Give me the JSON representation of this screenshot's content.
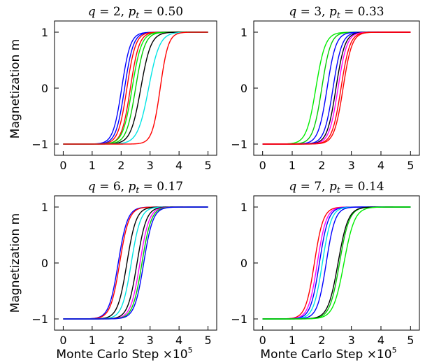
{
  "figure": {
    "ylabel": "Magnetization m",
    "xlabel": "Monte Carlo Step ×10",
    "xlabel_exponent": "5"
  },
  "chart_data": [
    {
      "type": "line",
      "title": "q = 2, p_t = 0.50",
      "title_parts": {
        "q": "2",
        "p": "0.50"
      },
      "xlim": [
        -0.3,
        5.3
      ],
      "ylim": [
        -1.2,
        1.2
      ],
      "xticks": [
        "0",
        "1",
        "2",
        "3",
        "4",
        "5"
      ],
      "yticks": [
        "-1",
        "0",
        "1"
      ],
      "grid": false,
      "series": [
        {
          "color": "#0000ff",
          "x0": 2.02,
          "width": 0.3
        },
        {
          "color": "#0000ff",
          "x0": 2.12,
          "width": 0.3
        },
        {
          "color": "#ff0000",
          "x0": 2.2,
          "width": 0.3
        },
        {
          "color": "#ff0000",
          "x0": 2.32,
          "width": 0.3
        },
        {
          "color": "#00ee00",
          "x0": 2.38,
          "width": 0.32
        },
        {
          "color": "#00cc00",
          "x0": 2.5,
          "width": 0.32
        },
        {
          "color": "#000000",
          "x0": 2.68,
          "width": 0.35
        },
        {
          "color": "#00e5e5",
          "x0": 2.95,
          "width": 0.38
        },
        {
          "color": "#ff0000",
          "x0": 3.35,
          "width": 0.28
        }
      ]
    },
    {
      "type": "line",
      "title": "q = 3, p_t = 0.33",
      "title_parts": {
        "q": "3",
        "p": "0.33"
      },
      "xlim": [
        -0.3,
        5.3
      ],
      "ylim": [
        -1.2,
        1.2
      ],
      "xticks": [
        "0",
        "1",
        "2",
        "3",
        "4",
        "5"
      ],
      "yticks": [
        "-1",
        "0",
        "1"
      ],
      "grid": false,
      "series": [
        {
          "color": "#00ee00",
          "x0": 1.8,
          "width": 0.32
        },
        {
          "color": "#00cc00",
          "x0": 2.0,
          "width": 0.3
        },
        {
          "color": "#0000ff",
          "x0": 2.18,
          "width": 0.3
        },
        {
          "color": "#0000ff",
          "x0": 2.38,
          "width": 0.3
        },
        {
          "color": "#000000",
          "x0": 2.48,
          "width": 0.3
        },
        {
          "color": "#ff00ff",
          "x0": 2.55,
          "width": 0.3
        },
        {
          "color": "#ff0000",
          "x0": 2.65,
          "width": 0.3
        },
        {
          "color": "#ff0000",
          "x0": 2.72,
          "width": 0.3
        }
      ]
    },
    {
      "type": "line",
      "title": "q = 6, p_t = 0.17",
      "title_parts": {
        "q": "6",
        "p": "0.17"
      },
      "xlim": [
        -0.3,
        5.3
      ],
      "ylim": [
        -1.2,
        1.2
      ],
      "xticks": [
        "0",
        "1",
        "2",
        "3",
        "4",
        "5"
      ],
      "yticks": [
        "-1",
        "0",
        "1"
      ],
      "grid": false,
      "series": [
        {
          "color": "#0000ff",
          "x0": 1.9,
          "width": 0.32
        },
        {
          "color": "#ff0000",
          "x0": 1.95,
          "width": 0.32
        },
        {
          "color": "#000000",
          "x0": 2.2,
          "width": 0.32
        },
        {
          "color": "#00e5e5",
          "x0": 2.35,
          "width": 0.32
        },
        {
          "color": "#000000",
          "x0": 2.55,
          "width": 0.32
        },
        {
          "color": "#ff00ff",
          "x0": 2.65,
          "width": 0.32
        },
        {
          "color": "#00cc00",
          "x0": 2.72,
          "width": 0.32
        },
        {
          "color": "#0000ff",
          "x0": 2.78,
          "width": 0.32
        }
      ]
    },
    {
      "type": "line",
      "title": "q = 7, p_t = 0.14",
      "title_parts": {
        "q": "7",
        "p": "0.14"
      },
      "xlim": [
        -0.3,
        5.3
      ],
      "ylim": [
        -1.2,
        1.2
      ],
      "xticks": [
        "0",
        "1",
        "2",
        "3",
        "4",
        "5"
      ],
      "yticks": [
        "-1",
        "0",
        "1"
      ],
      "grid": false,
      "series": [
        {
          "color": "#ff0000",
          "x0": 1.75,
          "width": 0.3
        },
        {
          "color": "#ff00ff",
          "x0": 1.85,
          "width": 0.3
        },
        {
          "color": "#0000ff",
          "x0": 1.92,
          "width": 0.3
        },
        {
          "color": "#00e5e5",
          "x0": 2.02,
          "width": 0.3
        },
        {
          "color": "#0000ff",
          "x0": 2.15,
          "width": 0.3
        },
        {
          "color": "#00cc00",
          "x0": 2.6,
          "width": 0.33
        },
        {
          "color": "#000000",
          "x0": 2.55,
          "width": 0.34
        },
        {
          "color": "#00ee00",
          "x0": 2.75,
          "width": 0.36
        }
      ]
    }
  ]
}
